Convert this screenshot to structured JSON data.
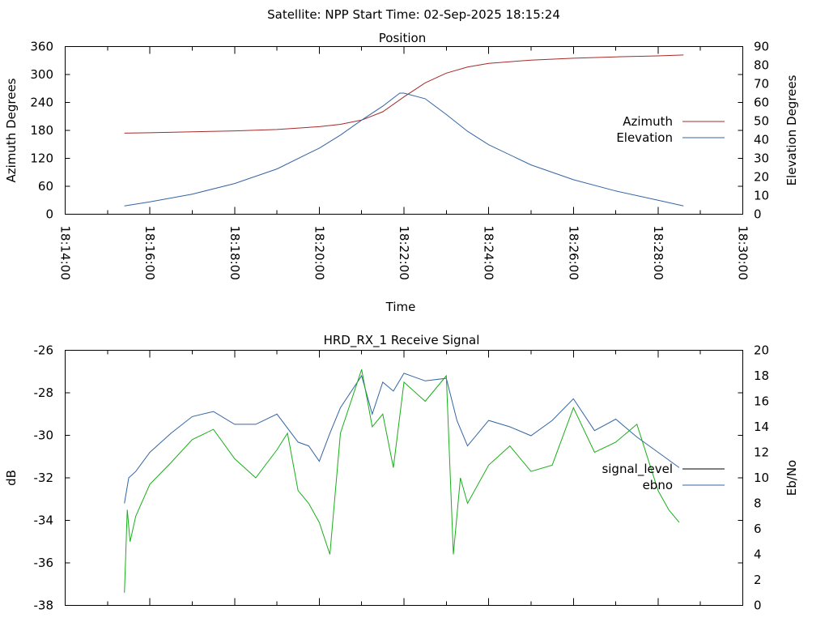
{
  "suptitle": "Satellite: NPP    Start Time: 02-Sep-2025 18:15:24",
  "colors": {
    "azimuth": "#a52a2a",
    "elevation": "#3465a4",
    "signal_level": "#000000",
    "ebno_green": "#1aae1a",
    "ebno_blue": "#3465a4"
  },
  "chart_data": [
    {
      "type": "line",
      "title": "Position",
      "xlabel": "Time",
      "ylabel": "Azimuth Degrees",
      "y2label": "Elevation Degrees",
      "xlim_minutes": [
        0,
        16
      ],
      "x_tick_labels": [
        "18:14:00",
        "18:16:00",
        "18:18:00",
        "18:20:00",
        "18:22:00",
        "18:24:00",
        "18:26:00",
        "18:28:00",
        "18:30:00"
      ],
      "ylim": [
        0,
        360
      ],
      "y_ticks": [
        "0",
        "60",
        "120",
        "180",
        "240",
        "300",
        "360"
      ],
      "y2lim": [
        0,
        90
      ],
      "y2_ticks": [
        "0",
        "10",
        "20",
        "30",
        "40",
        "50",
        "60",
        "70",
        "80",
        "90"
      ],
      "legend_position": "right",
      "series": [
        {
          "name": "Azimuth",
          "axis": "left",
          "x": [
            "18:15:24",
            "18:16:00",
            "18:17:00",
            "18:18:00",
            "18:19:00",
            "18:20:00",
            "18:20:30",
            "18:21:00",
            "18:21:30",
            "18:22:00",
            "18:22:30",
            "18:23:00",
            "18:23:30",
            "18:24:00",
            "18:25:00",
            "18:26:00",
            "18:27:00",
            "18:28:00",
            "18:28:36"
          ],
          "values": [
            174,
            175,
            177,
            179,
            182,
            188,
            193,
            202,
            220,
            252,
            282,
            303,
            316,
            324,
            331,
            335,
            338,
            340,
            342
          ]
        },
        {
          "name": "Elevation",
          "axis": "right",
          "x": [
            "18:15:24",
            "18:16:00",
            "18:17:00",
            "18:18:00",
            "18:19:00",
            "18:20:00",
            "18:20:30",
            "18:21:00",
            "18:21:30",
            "18:21:54",
            "18:22:00",
            "18:22:30",
            "18:23:00",
            "18:23:30",
            "18:24:00",
            "18:25:00",
            "18:26:00",
            "18:27:00",
            "18:28:00",
            "18:28:36"
          ],
          "values": [
            4.5,
            6.6,
            10.8,
            16.5,
            24.3,
            35.5,
            42.5,
            50.5,
            58,
            65,
            65,
            62,
            53.5,
            44.5,
            37.3,
            26.5,
            18.5,
            12.5,
            7.5,
            4.5
          ]
        }
      ]
    },
    {
      "type": "line",
      "title": "HRD_RX_1 Receive Signal",
      "xlabel": "",
      "ylabel": "dB",
      "y2label": "Eb/No",
      "xlim_minutes": [
        0,
        16
      ],
      "ylim": [
        -38,
        -26
      ],
      "y_ticks": [
        "-38",
        "-36",
        "-34",
        "-32",
        "-30",
        "-28",
        "-26"
      ],
      "y2lim": [
        0,
        20
      ],
      "y2_ticks": [
        "0",
        "2",
        "4",
        "6",
        "8",
        "10",
        "12",
        "14",
        "16",
        "18",
        "20"
      ],
      "legend_position": "right",
      "series": [
        {
          "name": "signal_level",
          "axis": "left",
          "x": [],
          "values": []
        },
        {
          "name": "ebno",
          "axis": "right",
          "x": [
            "18:15:24",
            "18:15:30",
            "18:15:40",
            "18:16:00",
            "18:16:30",
            "18:17:00",
            "18:17:30",
            "18:18:00",
            "18:18:30",
            "18:19:00",
            "18:19:30",
            "18:19:45",
            "18:20:00",
            "18:20:15",
            "18:20:30",
            "18:21:00",
            "18:21:15",
            "18:21:30",
            "18:21:45",
            "18:22:00",
            "18:22:30",
            "18:23:00",
            "18:23:15",
            "18:23:30",
            "18:24:00",
            "18:24:30",
            "18:25:00",
            "18:25:30",
            "18:26:00",
            "18:26:30",
            "18:27:00",
            "18:27:30",
            "18:28:00",
            "18:28:30"
          ],
          "values": [
            8,
            10,
            10.5,
            12,
            13.5,
            14.8,
            15.2,
            14.2,
            14.2,
            15,
            12.8,
            12.5,
            11.3,
            13.5,
            15.5,
            18,
            15,
            17.5,
            16.8,
            18.2,
            17.6,
            17.8,
            14.5,
            12.5,
            14.5,
            14,
            13.3,
            14.5,
            16.2,
            13.7,
            14.6,
            13.2,
            12,
            10.8
          ]
        },
        {
          "name": "",
          "axis": "right",
          "x": [
            "18:15:24",
            "18:15:28",
            "18:15:32",
            "18:15:40",
            "18:16:00",
            "18:16:30",
            "18:17:00",
            "18:17:30",
            "18:18:00",
            "18:18:30",
            "18:19:00",
            "18:19:15",
            "18:19:30",
            "18:19:45",
            "18:20:00",
            "18:20:15",
            "18:20:30",
            "18:21:00",
            "18:21:15",
            "18:21:30",
            "18:21:45",
            "18:22:00",
            "18:22:30",
            "18:23:00",
            "18:23:10",
            "18:23:20",
            "18:23:30",
            "18:24:00",
            "18:24:30",
            "18:25:00",
            "18:25:30",
            "18:26:00",
            "18:26:30",
            "18:27:00",
            "18:27:30",
            "18:28:00",
            "18:28:15",
            "18:28:30"
          ],
          "values": [
            1,
            7.5,
            5,
            7,
            9.5,
            11.2,
            13,
            13.8,
            11.5,
            10,
            12.2,
            13.5,
            9,
            8,
            6.5,
            4,
            13.5,
            18.5,
            14,
            15,
            10.8,
            17.5,
            16,
            18,
            4,
            10,
            8,
            11,
            12.5,
            10.5,
            11,
            15.5,
            12,
            12.8,
            14.2,
            9,
            7.5,
            6.5
          ]
        }
      ]
    }
  ]
}
